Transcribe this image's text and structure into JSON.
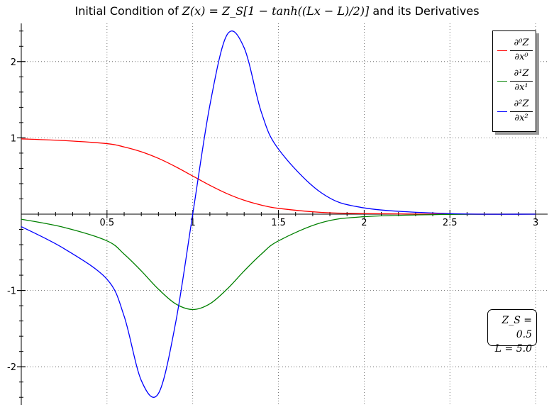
{
  "chart_data": {
    "type": "line",
    "title": {
      "prefix": "Initial Condition of ",
      "formula": "Z(x) = Z_S[1 − tanh((Lx − L)/2)]",
      "suffix": " and its Derivatives"
    },
    "xlabel": "",
    "ylabel": "",
    "xlim": [
      0,
      3.07
    ],
    "ylim": [
      -2.5,
      2.5
    ],
    "x_ticks": [
      0.5,
      1,
      1.5,
      2,
      2.5,
      3
    ],
    "x_tick_labels": [
      "0.5",
      "1",
      "1.5",
      "2",
      "2.5",
      "3"
    ],
    "y_ticks": [
      -2,
      -1,
      1,
      2
    ],
    "y_tick_labels": [
      "-2",
      "-1",
      "1",
      "2"
    ],
    "grid": true,
    "legend_position": "top-right",
    "params": {
      "Z_S": 0.5,
      "L": 5.0
    },
    "param_labels": [
      "Z_S = 0.5",
      "L = 5.0"
    ],
    "series": [
      {
        "name": "∂⁰Z/∂x⁰",
        "legend_num": "∂⁰Z",
        "legend_den": "∂x⁰",
        "color": "#ff0000",
        "x": [
          0,
          0.25,
          0.5,
          0.6,
          0.7,
          0.8,
          0.9,
          1.0,
          1.1,
          1.2,
          1.3,
          1.4,
          1.5,
          1.75,
          2.0,
          2.5,
          3.0
        ],
        "y": [
          0.987,
          0.964,
          0.924,
          0.881,
          0.818,
          0.731,
          0.622,
          0.5,
          0.378,
          0.269,
          0.182,
          0.119,
          0.076,
          0.023,
          0.007,
          0.0,
          0.0
        ]
      },
      {
        "name": "∂¹Z/∂x¹",
        "legend_num": "∂¹Z",
        "legend_den": "∂x¹",
        "color": "#008000",
        "x": [
          0,
          0.25,
          0.5,
          0.6,
          0.7,
          0.8,
          0.9,
          1.0,
          1.1,
          1.2,
          1.3,
          1.4,
          1.5,
          1.75,
          2.0,
          2.5,
          3.0
        ],
        "y": [
          -0.066,
          -0.174,
          -0.35,
          -0.524,
          -0.744,
          -0.983,
          -1.175,
          -1.25,
          -1.175,
          -0.983,
          -0.744,
          -0.524,
          -0.35,
          -0.112,
          -0.033,
          -0.003,
          0.0
        ]
      },
      {
        "name": "∂²Z/∂x²",
        "legend_num": "∂²Z",
        "legend_den": "∂x²",
        "color": "#0000ff",
        "x": [
          0,
          0.25,
          0.5,
          0.6,
          0.7,
          0.8,
          0.9,
          1.0,
          1.1,
          1.2,
          1.3,
          1.4,
          1.5,
          1.75,
          2.0,
          2.5,
          3.0
        ],
        "y": [
          -0.163,
          -0.452,
          -0.853,
          -1.338,
          -2.18,
          -2.35,
          -1.427,
          0.0,
          1.427,
          2.35,
          2.18,
          1.338,
          0.853,
          0.28,
          0.082,
          0.007,
          0.0
        ]
      }
    ]
  }
}
